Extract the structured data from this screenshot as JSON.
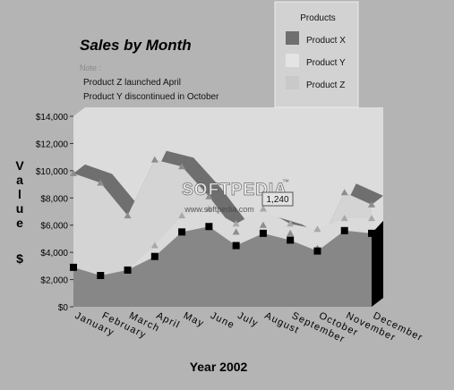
{
  "chart_data": {
    "type": "area",
    "title": "Sales by Month",
    "xlabel": "Year 2002",
    "ylabel": "Value $",
    "note": {
      "heading": "Note :",
      "lines": [
        "Product Z launched April",
        "Product Y discontinued in October"
      ]
    },
    "legend": {
      "title": "Products",
      "position": "top-right",
      "items": [
        "Product X",
        "Product Y",
        "Product Z"
      ]
    },
    "categories": [
      "January",
      "February",
      "March",
      "April",
      "May",
      "June",
      "July",
      "August",
      "September",
      "October",
      "November",
      "December"
    ],
    "ylim": [
      0,
      14000
    ],
    "ytick_labels": [
      "$0",
      "$2,000",
      "$4,000",
      "$6,000",
      "$8,000",
      "$10,000",
      "$12,000",
      "$14,000"
    ],
    "grid": false,
    "tooltip": "1,240",
    "watermark": {
      "logo": "SOFTPEDIA",
      "url": "www.softpedia.com",
      "trademark": "™"
    },
    "series": [
      {
        "name": "Product X",
        "color": "#878787",
        "values": [
          2900,
          2300,
          2700,
          3700,
          5500,
          5900,
          4500,
          5400,
          4900,
          4100,
          5600,
          5400
        ]
      },
      {
        "name": "Product Y",
        "color": "#d4d4d4",
        "values": [
          9800,
          9100,
          6700,
          10800,
          10300,
          8100,
          5500,
          6000,
          5400,
          4300,
          8400,
          7500
        ]
      },
      {
        "name": "Product Z",
        "color": "#dadada",
        "values": [
          0,
          0,
          0,
          800,
          1200,
          1300,
          1600,
          1800,
          1200,
          1600,
          900,
          1100
        ]
      }
    ]
  }
}
